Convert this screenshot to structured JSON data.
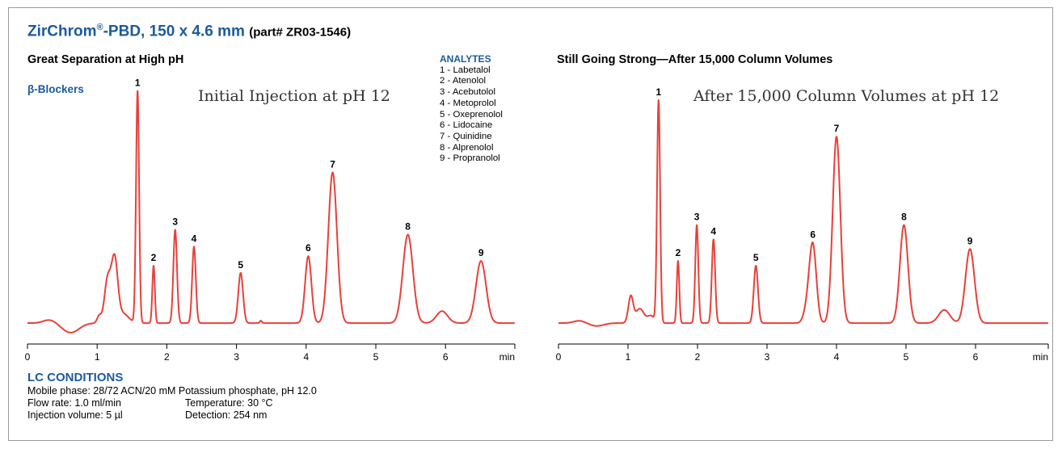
{
  "title": {
    "main": "ZirChrom",
    "reg": "®",
    "main_rest": "-PBD, 150 x 4.6 mm",
    "part": "(part# ZR03-1546)"
  },
  "colors": {
    "accent": "#1b5a9e",
    "trace": "#e8403a"
  },
  "class_label": "β-Blockers",
  "analytes": {
    "title": "ANALYTES",
    "items": [
      "1 - Labetalol",
      "2 - Atenolol",
      "3 - Acebutolol",
      "4 - Metoprolol",
      "5 - Oxeprenolol",
      "6 - Lidocaine",
      "7 - Quinidine",
      "8 - Alprenolol",
      "9 - Propranolol"
    ]
  },
  "conditions": {
    "title": "LC CONDITIONS",
    "mobile_phase": "Mobile phase: 28/72 ACN/20 mM Potassium phosphate, pH 12.0",
    "flow_rate": "Flow rate: 1.0 ml/min",
    "temperature": "Temperature: 30 °C",
    "injection_volume": "Injection volume: 5 µl",
    "detection": "Detection: 254 nm"
  },
  "chart_data": [
    {
      "type": "line",
      "subtitle": "Great Separation at High pH",
      "annotation": "Initial Injection at pH 12",
      "xlabel": "min",
      "xlim": [
        0,
        7.0
      ],
      "ylim": [
        0,
        100
      ],
      "x_ticks": [
        "0",
        "1",
        "2",
        "3",
        "4",
        "5",
        "6"
      ],
      "baseline": 2,
      "features": [
        {
          "t": 0.32,
          "h": 1.4,
          "w": 0.09
        },
        {
          "t": 0.62,
          "h": -4.0,
          "w": 0.12
        },
        {
          "t": 1.03,
          "h": 3.0,
          "w": 0.03
        },
        {
          "t": 1.15,
          "h": 18.0,
          "w": 0.045
        },
        {
          "t": 1.25,
          "h": 26.0,
          "w": 0.045
        },
        {
          "t": 1.37,
          "h": 4.0,
          "w": 0.08
        }
      ],
      "peaks": [
        {
          "label": "1",
          "t": 1.58,
          "h": 97,
          "w": 0.022
        },
        {
          "label": "2",
          "t": 1.81,
          "h": 24,
          "w": 0.018
        },
        {
          "label": "3",
          "t": 2.12,
          "h": 39,
          "w": 0.026
        },
        {
          "label": "4",
          "t": 2.39,
          "h": 32,
          "w": 0.026
        },
        {
          "label": "5",
          "t": 3.06,
          "h": 21,
          "w": 0.034
        },
        {
          "label": "6",
          "t": 4.03,
          "h": 28,
          "w": 0.045
        },
        {
          "label": "7",
          "t": 4.38,
          "h": 63,
          "w": 0.062
        },
        {
          "label": "8",
          "t": 5.46,
          "h": 37,
          "w": 0.072
        },
        {
          "label": "9",
          "t": 6.51,
          "h": 26,
          "w": 0.072
        }
      ],
      "minor_peaks": [
        {
          "t": 5.95,
          "h": 5.0,
          "w": 0.08
        },
        {
          "t": 3.35,
          "h": 1.0,
          "w": 0.015
        }
      ]
    },
    {
      "type": "line",
      "subtitle": "Still Going Strong—After 15,000 Column Volumes",
      "annotation": "After 15,000 Column Volumes at pH 12",
      "xlabel": "min",
      "xlim": [
        0,
        7.0
      ],
      "ylim": [
        0,
        100
      ],
      "x_ticks": [
        "0",
        "1",
        "2",
        "3",
        "4",
        "5",
        "6"
      ],
      "baseline": 2,
      "features": [
        {
          "t": 0.3,
          "h": 1.0,
          "w": 0.08
        },
        {
          "t": 0.55,
          "h": -1.2,
          "w": 0.1
        },
        {
          "t": 1.04,
          "h": 11.0,
          "w": 0.035
        },
        {
          "t": 1.17,
          "h": 6.0,
          "w": 0.06
        },
        {
          "t": 1.33,
          "h": 3.0,
          "w": 0.05
        }
      ],
      "peaks": [
        {
          "label": "1",
          "t": 1.44,
          "h": 93,
          "w": 0.022
        },
        {
          "label": "2",
          "t": 1.72,
          "h": 26,
          "w": 0.018
        },
        {
          "label": "3",
          "t": 1.99,
          "h": 41,
          "w": 0.022
        },
        {
          "label": "4",
          "t": 2.23,
          "h": 35,
          "w": 0.024
        },
        {
          "label": "5",
          "t": 2.84,
          "h": 24,
          "w": 0.03
        },
        {
          "label": "6",
          "t": 3.66,
          "h": 32,
          "w": 0.05
        },
        {
          "label": "7",
          "t": 4.0,
          "h": 78,
          "w": 0.055
        },
        {
          "label": "8",
          "t": 4.97,
          "h": 41,
          "w": 0.058
        },
        {
          "label": "9",
          "t": 5.92,
          "h": 31,
          "w": 0.065
        }
      ],
      "minor_peaks": [
        {
          "t": 3.58,
          "h": 6.0,
          "w": 0.05
        },
        {
          "t": 5.55,
          "h": 5.5,
          "w": 0.08
        }
      ]
    }
  ]
}
